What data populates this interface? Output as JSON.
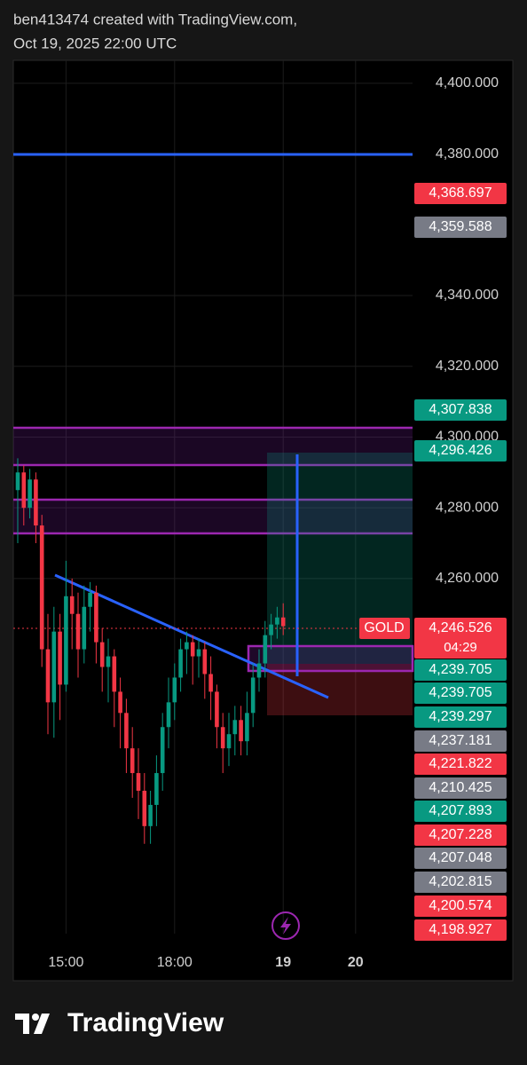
{
  "header": {
    "line1": "ben413474 created with TradingView.com,",
    "line2": "Oct 19, 2025 22:00 UTC"
  },
  "chart_data": {
    "type": "candlestick",
    "symbol": "GOLD",
    "countdown": "04:29",
    "up_color": "#089981",
    "down_color": "#f23645",
    "categories": [
      null,
      null,
      null,
      null,
      null,
      null,
      null,
      null,
      "15:00",
      null,
      null,
      null,
      null,
      null,
      null,
      null,
      null,
      null,
      null,
      null,
      null,
      null,
      null,
      null,
      null,
      null,
      "18:00",
      null,
      null,
      null,
      null,
      null,
      null,
      null,
      null,
      null,
      null,
      null,
      null,
      null,
      null,
      null,
      null,
      null,
      "19",
      null,
      null,
      null,
      null,
      null,
      null,
      null,
      null,
      null,
      null,
      null,
      "20",
      null,
      null,
      null,
      null,
      null,
      null,
      null,
      null,
      null
    ],
    "open": [
      4285,
      4290,
      4280,
      4288,
      4275,
      4240,
      4225,
      4245,
      4230,
      4255,
      4250,
      4240,
      4252,
      4256,
      4242,
      4235,
      4238,
      4228,
      4222,
      4212,
      4205,
      4200,
      4190,
      4196,
      4205,
      4218,
      4225,
      4232,
      4240,
      4242,
      4238,
      4240,
      4233,
      4228,
      4218,
      4212,
      4216,
      4220,
      4214,
      4222,
      4232,
      4236,
      4244,
      4247,
      4249,
      null,
      null,
      null,
      null,
      null,
      null,
      null,
      null,
      null,
      null,
      null,
      null,
      null,
      null,
      null,
      null,
      null,
      null,
      null,
      null,
      null
    ],
    "high": [
      4294,
      4292,
      4291,
      4290,
      4278,
      4250,
      4252,
      4250,
      4265,
      4260,
      4256,
      4258,
      4259,
      4258,
      4246,
      4243,
      4240,
      4232,
      4226,
      4218,
      4212,
      4205,
      4200,
      4210,
      4222,
      4232,
      4236,
      4243,
      4245,
      4244,
      4243,
      4242,
      4238,
      4230,
      4222,
      4222,
      4224,
      4224,
      4228,
      4236,
      4240,
      4248,
      4250,
      4252,
      4253,
      null,
      null,
      null,
      null,
      null,
      null,
      null,
      null,
      null,
      null,
      null,
      null,
      null,
      null,
      null,
      null,
      null,
      null,
      null,
      null,
      null
    ],
    "low": [
      4270,
      4275,
      4277,
      4270,
      4235,
      4216,
      4215,
      4220,
      4228,
      4240,
      4232,
      4236,
      4245,
      4236,
      4228,
      4225,
      4218,
      4212,
      4205,
      4198,
      4192,
      4185,
      4185,
      4190,
      4200,
      4212,
      4220,
      4228,
      4233,
      4230,
      4232,
      4226,
      4220,
      4212,
      4205,
      4207,
      4210,
      4210,
      4210,
      4218,
      4228,
      4232,
      4240,
      4243,
      4244,
      null,
      null,
      null,
      null,
      null,
      null,
      null,
      null,
      null,
      null,
      null,
      null,
      null,
      null,
      null,
      null,
      null,
      null,
      null,
      null,
      null
    ],
    "close": [
      4290,
      4280,
      4288,
      4275,
      4240,
      4225,
      4245,
      4230,
      4255,
      4250,
      4240,
      4252,
      4256,
      4242,
      4235,
      4238,
      4228,
      4222,
      4212,
      4205,
      4200,
      4190,
      4196,
      4205,
      4218,
      4225,
      4232,
      4240,
      4242,
      4238,
      4240,
      4233,
      4228,
      4218,
      4212,
      4216,
      4220,
      4214,
      4222,
      4232,
      4236,
      4244,
      4247,
      4249,
      4246.526,
      null,
      null,
      null,
      null,
      null,
      null,
      null,
      null,
      null,
      null,
      null,
      null,
      null,
      null,
      null,
      null,
      null,
      null,
      null,
      null,
      null
    ],
    "ylim": [
      4159.6,
      4406.5
    ],
    "yticks": [
      {
        "value": 4260,
        "label": "4,260.000"
      },
      {
        "value": 4280,
        "label": "4,280.000"
      },
      {
        "value": 4300,
        "label": "4,300.000"
      },
      {
        "value": 4320,
        "label": "4,320.000"
      },
      {
        "value": 4340,
        "label": "4,340.000"
      },
      {
        "value": 4380,
        "label": "4,380.000"
      },
      {
        "value": 4400,
        "label": "4,400.000"
      }
    ],
    "price_labels": [
      {
        "label": "4,368.697",
        "color": "#f23645"
      },
      {
        "label": "4,359.588",
        "color": "#787b86"
      },
      {
        "label": "4,307.838",
        "color": "#089981"
      },
      {
        "label": "4,296.426",
        "color": "#089981"
      },
      {
        "label": "4,246.526",
        "color": "#f23645"
      },
      {
        "label": "4,239.705",
        "color": "#089981"
      },
      {
        "label": "4,239.705",
        "color": "#089981"
      },
      {
        "label": "4,239.297",
        "color": "#089981"
      },
      {
        "label": "4,237.181",
        "color": "#787b86"
      },
      {
        "label": "4,221.822",
        "color": "#f23645"
      },
      {
        "label": "4,210.425",
        "color": "#787b86"
      },
      {
        "label": "4,207.893",
        "color": "#089981"
      },
      {
        "label": "4,207.228",
        "color": "#f23645"
      },
      {
        "label": "4,207.048",
        "color": "#787b86"
      },
      {
        "label": "4,202.815",
        "color": "#787b86"
      },
      {
        "label": "4,200.574",
        "color": "#f23645"
      },
      {
        "label": "4,198.927",
        "color": "#f23645"
      }
    ]
  },
  "footer": {
    "brand": "TradingView"
  }
}
